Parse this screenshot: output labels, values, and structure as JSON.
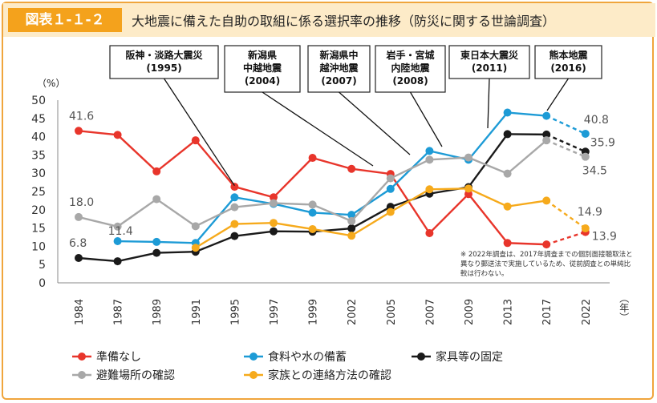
{
  "figure": {
    "badge": "図表１-１-２",
    "title": "大地震に備えた自助の取組に係る選択率の推移（防災に関する世論調査）",
    "note": "※ 2022年調査は、2017年調査までの個別面接聴取法と異なり郵送法で実施しているため、従前調査との単純比較は行わない。"
  },
  "chart_data": {
    "type": "line",
    "categories": [
      "1984",
      "1987",
      "1989",
      "1991",
      "1995",
      "1997",
      "1999",
      "2002",
      "2005",
      "2007",
      "2009",
      "2013",
      "2017",
      "2022"
    ],
    "ylabel": "（%）",
    "xunit": "（年）",
    "ylim": [
      0,
      50
    ],
    "yticks": [
      0,
      5,
      10,
      15,
      20,
      25,
      30,
      35,
      40,
      45,
      50
    ],
    "grid": false,
    "legend_position": "bottom",
    "series": [
      {
        "name": "準備なし",
        "color": "#e8352b",
        "values": [
          41.6,
          40.5,
          30.5,
          39.0,
          26.3,
          23.4,
          34.2,
          31.2,
          29.8,
          13.6,
          24.3,
          10.9,
          10.5,
          13.9
        ]
      },
      {
        "name": "食料や水の備蓄",
        "color": "#1d9bd6",
        "values": [
          null,
          11.4,
          11.2,
          10.9,
          23.4,
          21.6,
          19.2,
          18.6,
          25.7,
          36.1,
          33.7,
          46.6,
          45.7,
          40.8
        ]
      },
      {
        "name": "家具等の固定",
        "color": "#1a1a1a",
        "values": [
          6.8,
          5.9,
          8.2,
          8.5,
          12.8,
          14.1,
          14.0,
          14.9,
          20.8,
          24.4,
          26.2,
          40.7,
          40.6,
          35.9
        ]
      },
      {
        "name": "避難場所の確認",
        "color": "#a8a8a8",
        "values": [
          18.0,
          15.4,
          22.9,
          15.5,
          20.7,
          21.8,
          21.4,
          16.9,
          28.6,
          33.7,
          34.3,
          29.9,
          39.0,
          34.5
        ]
      },
      {
        "name": "家族との連絡方法の確認",
        "color": "#f6aa1c",
        "values": [
          null,
          null,
          null,
          9.6,
          16.1,
          16.4,
          14.7,
          12.9,
          19.4,
          25.6,
          25.8,
          20.9,
          22.5,
          14.9
        ]
      }
    ],
    "data_labels": [
      {
        "text": "41.6",
        "series": 0,
        "index": 0
      },
      {
        "text": "11.4",
        "series": 1,
        "index": 1
      },
      {
        "text": "6.8",
        "series": 2,
        "index": 0
      },
      {
        "text": "18.0",
        "series": 3,
        "index": 0
      },
      {
        "text": "40.8",
        "series": 1,
        "index": 13
      },
      {
        "text": "35.9",
        "series": 2,
        "index": 13
      },
      {
        "text": "34.5",
        "series": 3,
        "index": 13
      },
      {
        "text": "14.9",
        "series": 4,
        "index": 13
      },
      {
        "text": "13.9",
        "series": 0,
        "index": 13
      }
    ],
    "annotations": [
      {
        "lines": [
          "阪神・淡路大震災",
          "(1995)"
        ]
      },
      {
        "lines": [
          "新潟県",
          "中越地震",
          "(2004)"
        ]
      },
      {
        "lines": [
          "新潟県中",
          "越沖地震",
          "(2007)"
        ]
      },
      {
        "lines": [
          "岩手・宮城",
          "内陸地震",
          "(2008)"
        ]
      },
      {
        "lines": [
          "東日本大震災",
          "(2011)"
        ]
      },
      {
        "lines": [
          "熊本地震",
          "(2016)"
        ]
      }
    ]
  }
}
